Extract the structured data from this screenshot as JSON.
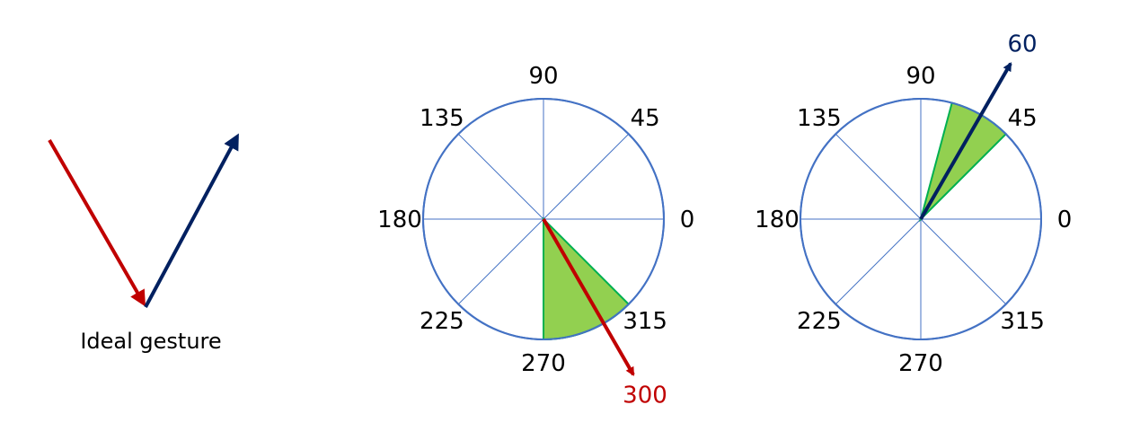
{
  "ideal_gesture": {
    "caption": "Ideal gesture",
    "down_stroke_color": "#c00000",
    "up_stroke_color": "#002060"
  },
  "dials": [
    {
      "angle_labels": [
        "0",
        "45",
        "90",
        "135",
        "180",
        "225",
        "270",
        "315"
      ],
      "sector_degrees": [
        270,
        315
      ],
      "arrow": {
        "angle": 300,
        "label": "300",
        "color": "#c00000"
      }
    },
    {
      "angle_labels": [
        "0",
        "45",
        "90",
        "135",
        "180",
        "225",
        "270",
        "315"
      ],
      "sector_degrees": [
        45,
        75
      ],
      "arrow": {
        "angle": 60,
        "label": "60",
        "color": "#002060"
      }
    }
  ],
  "colors": {
    "circle_outline": "#4472c4",
    "spokes": "#4472c4",
    "sector_fill": "#92d050",
    "sector_outline": "#00b050"
  }
}
